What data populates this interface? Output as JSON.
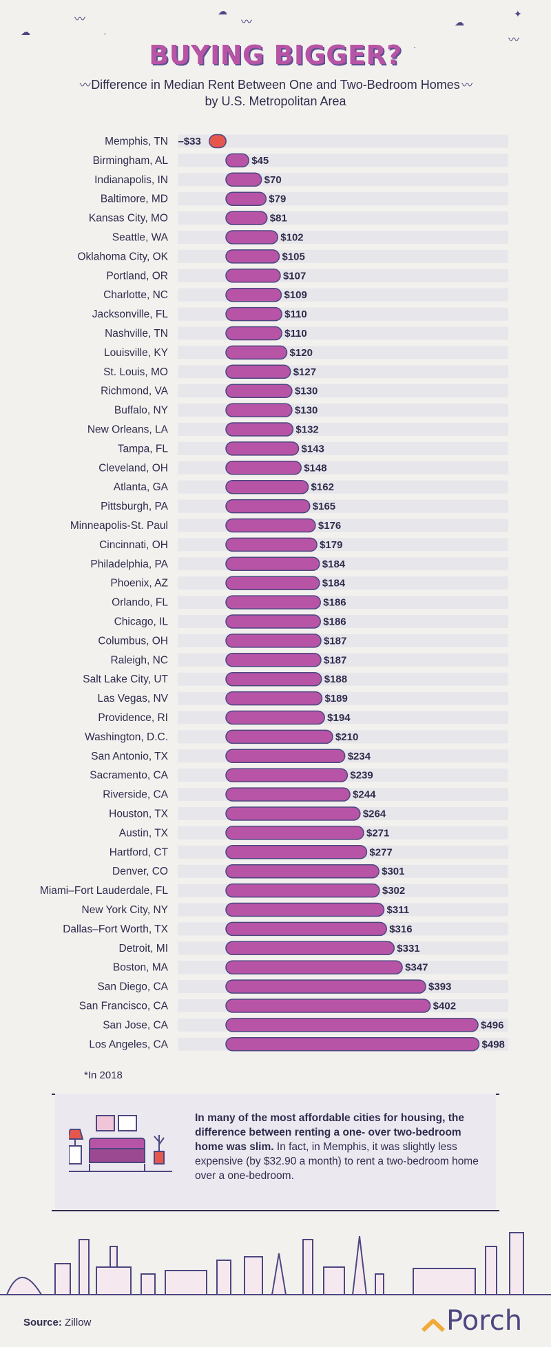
{
  "header": {
    "title": "BUYING BIGGER?",
    "subtitle_line1": "Difference in Median Rent Between One and Two-Bedroom Homes",
    "subtitle_line2": "by U.S. Metropolitan Area"
  },
  "chart_data": {
    "type": "bar",
    "orientation": "horizontal",
    "title": "BUYING BIGGER?",
    "subtitle": "Difference in Median Rent Between One and Two-Bedroom Homes by U.S. Metropolitan Area",
    "value_prefix": "$",
    "categories": [
      "Memphis, TN",
      "Birmingham, AL",
      "Indianapolis, IN",
      "Baltimore, MD",
      "Kansas City, MO",
      "Seattle, WA",
      "Oklahoma City, OK",
      "Portland, OR",
      "Charlotte, NC",
      "Jacksonville, FL",
      "Nashville, TN",
      "Louisville, KY",
      "St. Louis, MO",
      "Richmond, VA",
      "Buffalo, NY",
      "New Orleans, LA",
      "Tampa, FL",
      "Cleveland, OH",
      "Atlanta, GA",
      "Pittsburgh, PA",
      "Minneapolis-St. Paul",
      "Cincinnati, OH",
      "Philadelphia, PA",
      "Phoenix, AZ",
      "Orlando, FL",
      "Chicago, IL",
      "Columbus, OH",
      "Raleigh, NC",
      "Salt Lake City, UT",
      "Las Vegas, NV",
      "Providence, RI",
      "Washington, D.C.",
      "San Antonio, TX",
      "Sacramento, CA",
      "Riverside, CA",
      "Houston, TX",
      "Austin, TX",
      "Hartford, CT",
      "Denver, CO",
      "Miami–Fort Lauderdale, FL",
      "New York City, NY",
      "Dallas–Fort Worth, TX",
      "Detroit, MI",
      "Boston, MA",
      "San Diego, CA",
      "San Francisco, CA",
      "San Jose, CA",
      "Los Angeles, CA"
    ],
    "values": [
      -33,
      45,
      70,
      79,
      81,
      102,
      105,
      107,
      109,
      110,
      110,
      120,
      127,
      130,
      130,
      132,
      143,
      148,
      162,
      165,
      176,
      179,
      184,
      184,
      186,
      186,
      187,
      187,
      188,
      189,
      194,
      210,
      234,
      239,
      244,
      264,
      271,
      277,
      301,
      302,
      311,
      316,
      331,
      347,
      393,
      402,
      496,
      498
    ],
    "labels": [
      "–$33",
      "$45",
      "$70",
      "$79",
      "$81",
      "$102",
      "$105",
      "$107",
      "$109",
      "$110",
      "$110",
      "$120",
      "$127",
      "$130",
      "$130",
      "$132",
      "$143",
      "$148",
      "$162",
      "$165",
      "$176",
      "$179",
      "$184",
      "$184",
      "$186",
      "$186",
      "$187",
      "$187",
      "$188",
      "$189",
      "$194",
      "$210",
      "$234",
      "$239",
      "$244",
      "$264",
      "$271",
      "$277",
      "$301",
      "$302",
      "$311",
      "$316",
      "$331",
      "$347",
      "$393",
      "$402",
      "$496",
      "$498"
    ],
    "colors": {
      "positive": "#b854a6",
      "negative": "#e5574d",
      "track": "#e7e6ea"
    }
  },
  "footnote": "*In 2018",
  "note": {
    "bold_text": "In many of the most affordable cities for housing, the difference between renting a one- over two-bedroom home was slim.",
    "regular_text": " In fact, in Memphis, it was slightly less expensive (by $32.90 a month) to rent a two-bedroom home over a one-bedroom."
  },
  "footer": {
    "source_label": "Source:",
    "source_value": "Zillow",
    "brand": "Porch"
  }
}
